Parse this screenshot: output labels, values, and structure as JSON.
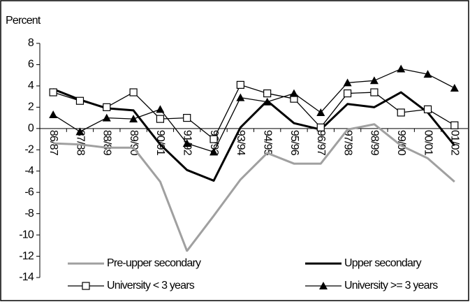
{
  "chart_data": {
    "type": "line",
    "y_label": "Percent",
    "categories": [
      "86/87",
      "87/88",
      "88/89",
      "89/90",
      "90/91",
      "91/92",
      "92/93",
      "93/94",
      "94/95",
      "95/96",
      "96/97",
      "97/98",
      "98/99",
      "99/00",
      "00/01",
      "01/02"
    ],
    "series": [
      {
        "name": "Pre-upper secondary",
        "color": "#a0a0a0",
        "marker": "none",
        "values": [
          -1.4,
          -1.5,
          -1.8,
          -1.8,
          -5,
          -11.5,
          -8.2,
          -4.8,
          -2.3,
          -3.3,
          -3.3,
          -0.1,
          0.4,
          -1.6,
          -2.8,
          -5
        ]
      },
      {
        "name": "Upper secondary",
        "color": "#000000",
        "marker": "none",
        "values": [
          3.7,
          2.7,
          1.9,
          1.7,
          -1.5,
          -3.9,
          -4.9,
          0.1,
          2.6,
          0.5,
          -0.1,
          2.3,
          2.0,
          3.4,
          1.5,
          -1.6
        ]
      },
      {
        "name": "University < 3 years",
        "color": "#000000",
        "marker": "square",
        "values": [
          3.4,
          2.6,
          2.0,
          3.4,
          0.9,
          1.0,
          -1.0,
          4.1,
          3.3,
          2.8,
          0.1,
          3.3,
          3.4,
          1.5,
          1.8,
          0.3
        ]
      },
      {
        "name": "University >= 3 years",
        "color": "#000000",
        "marker": "triangle",
        "values": [
          1.3,
          -0.3,
          1.0,
          0.9,
          1.8,
          -1.4,
          -2.2,
          2.9,
          2.5,
          3.3,
          1.5,
          4.3,
          4.5,
          5.6,
          5.1,
          3.8
        ]
      }
    ],
    "ylim": [
      -14,
      8
    ],
    "yticks": [
      -14,
      -12,
      -10,
      -8,
      -6,
      -4,
      -2,
      0,
      2,
      4,
      6,
      8
    ],
    "grid": false,
    "legend": "bottom"
  }
}
